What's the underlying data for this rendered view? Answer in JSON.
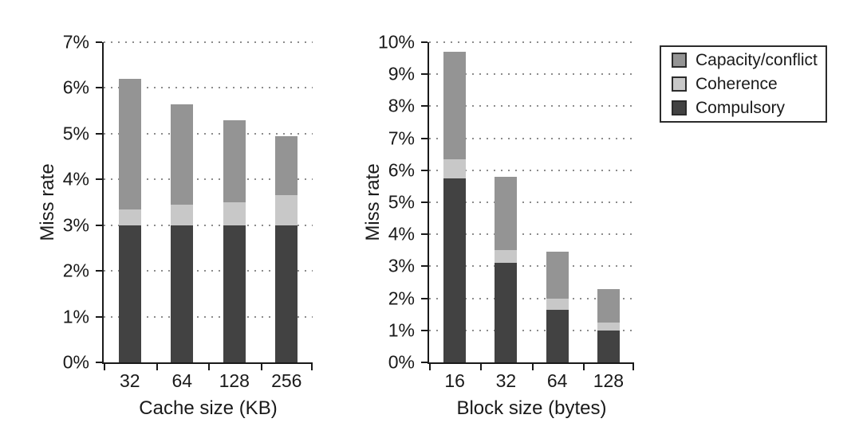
{
  "figure": {
    "background": "#ffffff",
    "axis_color": "#1a1a1a",
    "gridline_color": "#8c8c8c",
    "gridline_style": "dotted-horizontal"
  },
  "legend": {
    "position": "top-right",
    "border_color": "#2b2b2b",
    "items": [
      {
        "label": "Capacity/conflict",
        "color": "#949494"
      },
      {
        "label": "Coherence",
        "color": "#c8c8c8"
      },
      {
        "label": "Compulsory",
        "color": "#424242"
      }
    ]
  },
  "chart_data": [
    {
      "type": "bar",
      "stacked": true,
      "title": "",
      "xlabel": "Cache size (KB)",
      "ylabel": "Miss rate",
      "categories": [
        "32",
        "64",
        "128",
        "256"
      ],
      "ylim": [
        0,
        7
      ],
      "ytick_labels": [
        "0%",
        "1%",
        "2%",
        "3%",
        "4%",
        "5%",
        "6%",
        "7%"
      ],
      "grid": "horizontal dotted",
      "legend_position": "outside-top-right",
      "series": [
        {
          "name": "Compulsory",
          "color": "#424242",
          "values": [
            3.0,
            3.0,
            3.0,
            3.0
          ]
        },
        {
          "name": "Coherence",
          "color": "#c8c8c8",
          "values": [
            0.35,
            0.45,
            0.5,
            0.65
          ]
        },
        {
          "name": "Capacity/conflict",
          "color": "#949494",
          "values": [
            2.85,
            2.2,
            1.8,
            1.3
          ]
        }
      ],
      "totals": [
        6.2,
        5.65,
        5.3,
        4.95
      ]
    },
    {
      "type": "bar",
      "stacked": true,
      "title": "",
      "xlabel": "Block size (bytes)",
      "ylabel": "Miss rate",
      "categories": [
        "16",
        "32",
        "64",
        "128"
      ],
      "ylim": [
        0,
        10
      ],
      "ytick_labels": [
        "0%",
        "1%",
        "2%",
        "3%",
        "4%",
        "5%",
        "6%",
        "7%",
        "8%",
        "9%",
        "10%"
      ],
      "grid": "horizontal dotted",
      "legend_position": "outside-top-right",
      "series": [
        {
          "name": "Compulsory",
          "color": "#424242",
          "values": [
            5.75,
            3.1,
            1.65,
            1.0
          ]
        },
        {
          "name": "Coherence",
          "color": "#c8c8c8",
          "values": [
            0.6,
            0.4,
            0.35,
            0.25
          ]
        },
        {
          "name": "Capacity/conflict",
          "color": "#949494",
          "values": [
            3.35,
            2.3,
            1.45,
            1.05
          ]
        }
      ],
      "totals": [
        9.7,
        5.8,
        3.45,
        2.3
      ]
    }
  ]
}
